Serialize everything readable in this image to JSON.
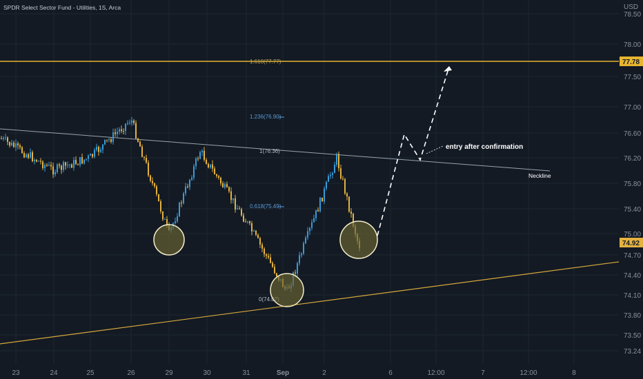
{
  "symbol_info": "SPDR Select Sector Fund - Utilities, 1S, Arca",
  "currency": "USD",
  "price_scale": {
    "labels": [
      "78.50",
      "78.00",
      "77.50",
      "77.00",
      "76.60",
      "76.20",
      "75.80",
      "75.40",
      "75.00",
      "74.70",
      "74.40",
      "74.10",
      "73.80",
      "73.50",
      "73.24"
    ],
    "last_price": "74.92",
    "resistance_price": "77.78"
  },
  "time_scale": [
    "23",
    "24",
    "25",
    "26",
    "29",
    "30",
    "31",
    "Sep",
    "2",
    "6",
    "12:00",
    "7",
    "12:00",
    "8"
  ],
  "fib_levels": [
    {
      "label": "1.618(77.77)",
      "color": "#b9a25a"
    },
    {
      "label": "1.236(76.90)",
      "color": "#5b9bd5"
    },
    {
      "label": "1(76.36)",
      "color": "#b8bec8"
    },
    {
      "label": "0.618(75.49)",
      "color": "#5b9bd5"
    },
    {
      "label": "0(74.07)",
      "color": "#b8bec8"
    }
  ],
  "annotations": {
    "entry": "entry after confirmation",
    "neckline": "Neckline"
  },
  "colors": {
    "background": "#131a24",
    "up_candle": "#3a9ad9",
    "down_candle": "#e5b240",
    "resistance_line": "#e7b52f",
    "trend_line": "#d8a83a",
    "neckline": "#9aa3af",
    "circle_fill": "#6b6632",
    "circle_stroke": "#f3edc8"
  },
  "chart_data": {
    "type": "line",
    "x": [
      "23",
      "24",
      "25",
      "26",
      "29",
      "30",
      "31",
      "Sep",
      "2",
      "6"
    ],
    "series": [
      {
        "values": [
          76.6,
          76.1,
          76.3,
          76.9,
          75.1,
          76.4,
          75.3,
          74.2,
          76.3,
          74.92
        ]
      }
    ],
    "ylim": [
      73.24,
      78.5
    ]
  }
}
